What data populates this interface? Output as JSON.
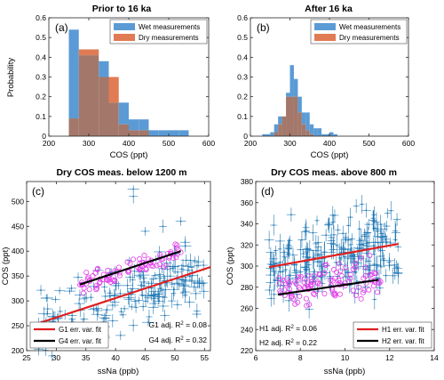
{
  "colors": {
    "wet": "#5b9bd5",
    "dry": "#e07b54",
    "overlap": "#a3786a",
    "blue_pts": "#1f77b4",
    "magenta_pts": "#e23ae8",
    "red_line": "#e01f1f",
    "black_line": "#000000"
  },
  "chart_data": [
    {
      "type": "bar",
      "panel": "(a)",
      "title": "Prior to 16 ka",
      "xlabel": "COS (ppt)",
      "ylabel": "Probability",
      "xlim": [
        200,
        600
      ],
      "ylim": [
        0,
        0.6
      ],
      "xticks": [
        "200",
        "300",
        "400",
        "500",
        "600"
      ],
      "yticks": [
        "0",
        "0.1",
        "0.2",
        "0.3",
        "0.4",
        "0.5",
        "0.6"
      ],
      "bin_edges": [
        250,
        275,
        300,
        325,
        350,
        375,
        400,
        425,
        450,
        475,
        500,
        525,
        550
      ],
      "series": [
        {
          "name": "Wet measurements",
          "values": [
            0.54,
            0.41,
            0.41,
            0.38,
            0.17,
            0.17,
            0.085,
            0.085,
            0.03,
            0.03,
            0.03,
            0.03
          ]
        },
        {
          "name": "Dry measurements",
          "values": [
            0.09,
            0.44,
            0.44,
            0.3,
            0.3,
            0.06,
            0.03,
            0.03,
            0,
            0,
            0,
            0
          ]
        }
      ],
      "legend": "top-right"
    },
    {
      "type": "bar",
      "panel": "(b)",
      "title": "After 16 ka",
      "xlabel": "COS (ppt)",
      "ylabel": "",
      "xlim": [
        200,
        600
      ],
      "ylim": [
        0,
        0.6
      ],
      "xticks": [
        "200",
        "300",
        "400",
        "500",
        "600"
      ],
      "yticks": [
        "0",
        "0.1",
        "0.2",
        "0.3",
        "0.4",
        "0.5",
        "0.6"
      ],
      "bin_edges": [
        230,
        240,
        250,
        260,
        270,
        280,
        290,
        300,
        310,
        320,
        330,
        340,
        350,
        360,
        370,
        380,
        390,
        400,
        410,
        420
      ],
      "series": [
        {
          "name": "Wet measurements",
          "values": [
            0.01,
            0.01,
            0.02,
            0.06,
            0.1,
            0.1,
            0.22,
            0.36,
            0.29,
            0.2,
            0.12,
            0.12,
            0.06,
            0.04,
            0.04,
            0.01,
            0.01,
            0.02,
            0.01
          ]
        },
        {
          "name": "Dry measurements",
          "values": [
            0,
            0,
            0,
            0.02,
            0.06,
            0.1,
            0.2,
            0.2,
            0.2,
            0.12,
            0.06,
            0.03,
            0.01,
            0,
            0,
            0,
            0,
            0,
            0
          ]
        }
      ],
      "legend": "top-right"
    },
    {
      "type": "scatter",
      "panel": "(c)",
      "title": "Dry COS meas. below 1200 m",
      "xlabel": "ssNa (ppb)",
      "ylabel": "COS (ppt)",
      "xlim": [
        25,
        56
      ],
      "ylim": [
        200,
        540
      ],
      "xticks": [
        "25",
        "30",
        "35",
        "40",
        "45",
        "50",
        "55"
      ],
      "yticks": [
        "200",
        "250",
        "300",
        "350",
        "400",
        "450",
        "500"
      ],
      "series": [
        {
          "name": "G1 err. var. fit",
          "line": [
            [
              27,
              255
            ],
            [
              56,
              368
            ]
          ]
        },
        {
          "name": "G4 err. var. fit",
          "line": [
            [
              34,
              333
            ],
            [
              51,
              400
            ]
          ]
        }
      ],
      "blue_cloud": {
        "xrange": [
          27,
          55
        ],
        "ycenter_at_xmin": 260,
        "ycenter_at_xmax": 350,
        "spread": 30
      },
      "magenta_cloud": {
        "xrange": [
          34,
          51
        ],
        "ycenter_at_xmin": 333,
        "ycenter_at_xmax": 395,
        "spread": 10
      },
      "outliers": [
        [
          43,
          525
        ],
        [
          43,
          510
        ],
        [
          51,
          460
        ],
        [
          48,
          450
        ],
        [
          45,
          440
        ]
      ],
      "annotations": [
        "G1 adj. R",
        "2",
        " = 0.08",
        "G4 adj. R",
        "2",
        " = 0.32"
      ],
      "legend": "bottom-left"
    },
    {
      "type": "scatter",
      "panel": "(d)",
      "title": "Dry COS meas. above 800 m",
      "xlabel": "ssNa (ppb)",
      "ylabel": "COS (ppt)",
      "xlim": [
        6,
        14
      ],
      "ylim": [
        220,
        380
      ],
      "xticks": [
        "6",
        "8",
        "10",
        "12",
        "14"
      ],
      "yticks": [
        "220",
        "240",
        "260",
        "280",
        "300",
        "320",
        "340",
        "360",
        "380"
      ],
      "series": [
        {
          "name": "H1 err. var. fit",
          "line": [
            [
              6.6,
              299
            ],
            [
              12.4,
              321
            ]
          ]
        },
        {
          "name": "H2 err. var. fit",
          "line": [
            [
              7.0,
              273
            ],
            [
              11.5,
              287
            ]
          ]
        }
      ],
      "blue_cloud": {
        "xrange": [
          6.6,
          12.4
        ],
        "ycenter_at_xmin": 300,
        "ycenter_at_xmax": 318,
        "spread": 18
      },
      "magenta_cloud": {
        "xrange": [
          7.0,
          11.6
        ],
        "ycenter_at_xmin": 276,
        "ycenter_at_xmax": 290,
        "spread": 8
      },
      "annotations": [
        "H1 adj. R",
        "2",
        " = 0.06",
        "H2 adj. R",
        "2",
        " = 0.22"
      ],
      "legend": "bottom-right"
    }
  ]
}
